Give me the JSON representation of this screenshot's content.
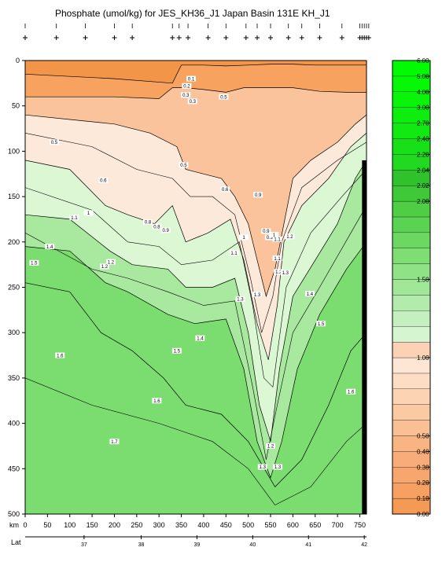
{
  "chart_data": {
    "type": "heatmap",
    "title": "Phosphate (umol/kg) for JES_KH36_J1 Japan Basin 131E KH_J1",
    "x_axis_label": "km",
    "x_ticks": [
      0,
      50,
      100,
      150,
      200,
      250,
      300,
      350,
      400,
      450,
      500,
      550,
      600,
      650,
      700,
      750
    ],
    "xlim": [
      0,
      765
    ],
    "y_ticks": [
      0,
      50,
      100,
      150,
      200,
      250,
      300,
      350,
      400,
      450,
      500
    ],
    "ylim": [
      0,
      500
    ],
    "y_inverted": true,
    "lat_axis_label": "Lat",
    "lat_ticks": [
      {
        "label": "37",
        "km": 132
      },
      {
        "label": "38",
        "km": 260
      },
      {
        "label": "39",
        "km": 385
      },
      {
        "label": "40",
        "km": 510
      },
      {
        "label": "41",
        "km": 635
      },
      {
        "label": "42",
        "km": 760
      }
    ],
    "station_km": [
      0,
      70,
      135,
      200,
      240,
      330,
      345,
      365,
      410,
      450,
      495,
      520,
      550,
      590,
      620,
      660,
      710,
      750,
      755,
      760,
      765,
      770
    ],
    "colorbar": {
      "levels": [
        "0.00",
        "0.10",
        "0.20",
        "0.30",
        "0.40",
        "0.50",
        "0.60",
        "0.70",
        "0.80",
        "0.90",
        "1.00",
        "1.10",
        "1.20",
        "1.30",
        "1.40",
        "1.50",
        "1.60",
        "1.70",
        "1.80",
        "1.90",
        "2.00",
        "2.02",
        "2.04",
        "2.20",
        "2.40",
        "2.70",
        "3.00",
        "4.00",
        "5.00",
        "6.00"
      ],
      "tick_labels": [
        "0.00",
        "0.10",
        "0.20",
        "0.30",
        "0.40",
        "0.50",
        "1.00",
        "1.50",
        "2.00",
        "2.02",
        "2.04",
        "2.20",
        "2.40",
        "2.70",
        "3.00",
        "4.00",
        "5.00",
        "6.00"
      ],
      "colors": [
        "#f59a55",
        "#f6a062",
        "#f7a66d",
        "#f8ac79",
        "#f9b484",
        "#fac093",
        "#fbcaa3",
        "#fcd4b4",
        "#fddec5",
        "#fde6d3",
        "#fbd2b5",
        "#d4f5d0",
        "#c4f0bf",
        "#b2ebab",
        "#a1e798",
        "#8fe286",
        "#7edd73",
        "#6cd861",
        "#5bd352",
        "#4ecd45",
        "#3fc838",
        "#2fc22c",
        "#22d922",
        "#18e018",
        "#12e812",
        "#0eee0e",
        "#0af40a",
        "#06f806",
        "#02fb02"
      ]
    },
    "contour_labels": [
      {
        "t": "0.1",
        "km": 372,
        "d": 20
      },
      {
        "t": "0.2",
        "km": 362,
        "d": 28
      },
      {
        "t": "0.3",
        "km": 360,
        "d": 38
      },
      {
        "t": "0.3",
        "km": 375,
        "d": 45
      },
      {
        "t": "0.5",
        "km": 445,
        "d": 40
      },
      {
        "t": "0.5",
        "km": 65,
        "d": 90
      },
      {
        "t": "0.5",
        "km": 355,
        "d": 115
      },
      {
        "t": "0.6",
        "km": 175,
        "d": 132
      },
      {
        "t": "0.6",
        "km": 448,
        "d": 142
      },
      {
        "t": "0.9",
        "km": 522,
        "d": 148
      },
      {
        "t": "1.1",
        "km": 110,
        "d": 173
      },
      {
        "t": "1",
        "km": 142,
        "d": 168
      },
      {
        "t": "0.8",
        "km": 275,
        "d": 178
      },
      {
        "t": "0.8",
        "km": 295,
        "d": 183
      },
      {
        "t": "0.9",
        "km": 315,
        "d": 187
      },
      {
        "t": "0.9",
        "km": 540,
        "d": 188
      },
      {
        "t": "0.9",
        "km": 548,
        "d": 195
      },
      {
        "t": "1",
        "km": 558,
        "d": 192
      },
      {
        "t": "1.1",
        "km": 565,
        "d": 197
      },
      {
        "t": "1.2",
        "km": 593,
        "d": 194
      },
      {
        "t": "1",
        "km": 490,
        "d": 195
      },
      {
        "t": "1.4",
        "km": 55,
        "d": 205
      },
      {
        "t": "1.1",
        "km": 468,
        "d": 212
      },
      {
        "t": "1.1",
        "km": 565,
        "d": 218
      },
      {
        "t": "1.5",
        "km": 20,
        "d": 223
      },
      {
        "t": "1.2",
        "km": 192,
        "d": 222
      },
      {
        "t": "1.2",
        "km": 178,
        "d": 227
      },
      {
        "t": "1.2",
        "km": 568,
        "d": 233
      },
      {
        "t": "1.3",
        "km": 583,
        "d": 234
      },
      {
        "t": "1.3",
        "km": 520,
        "d": 258
      },
      {
        "t": "1.3",
        "km": 482,
        "d": 263
      },
      {
        "t": "1.4",
        "km": 638,
        "d": 257
      },
      {
        "t": "1.5",
        "km": 663,
        "d": 290
      },
      {
        "t": "1.4",
        "km": 392,
        "d": 306
      },
      {
        "t": "1.5",
        "km": 340,
        "d": 320
      },
      {
        "t": "1.6",
        "km": 78,
        "d": 325
      },
      {
        "t": "1.6",
        "km": 730,
        "d": 365
      },
      {
        "t": "1.6",
        "km": 295,
        "d": 375
      },
      {
        "t": "1.7",
        "km": 200,
        "d": 420
      },
      {
        "t": "1.2",
        "km": 550,
        "d": 425
      },
      {
        "t": "1.3",
        "km": 532,
        "d": 448
      },
      {
        "t": "1.3",
        "km": 566,
        "d": 448
      }
    ]
  }
}
